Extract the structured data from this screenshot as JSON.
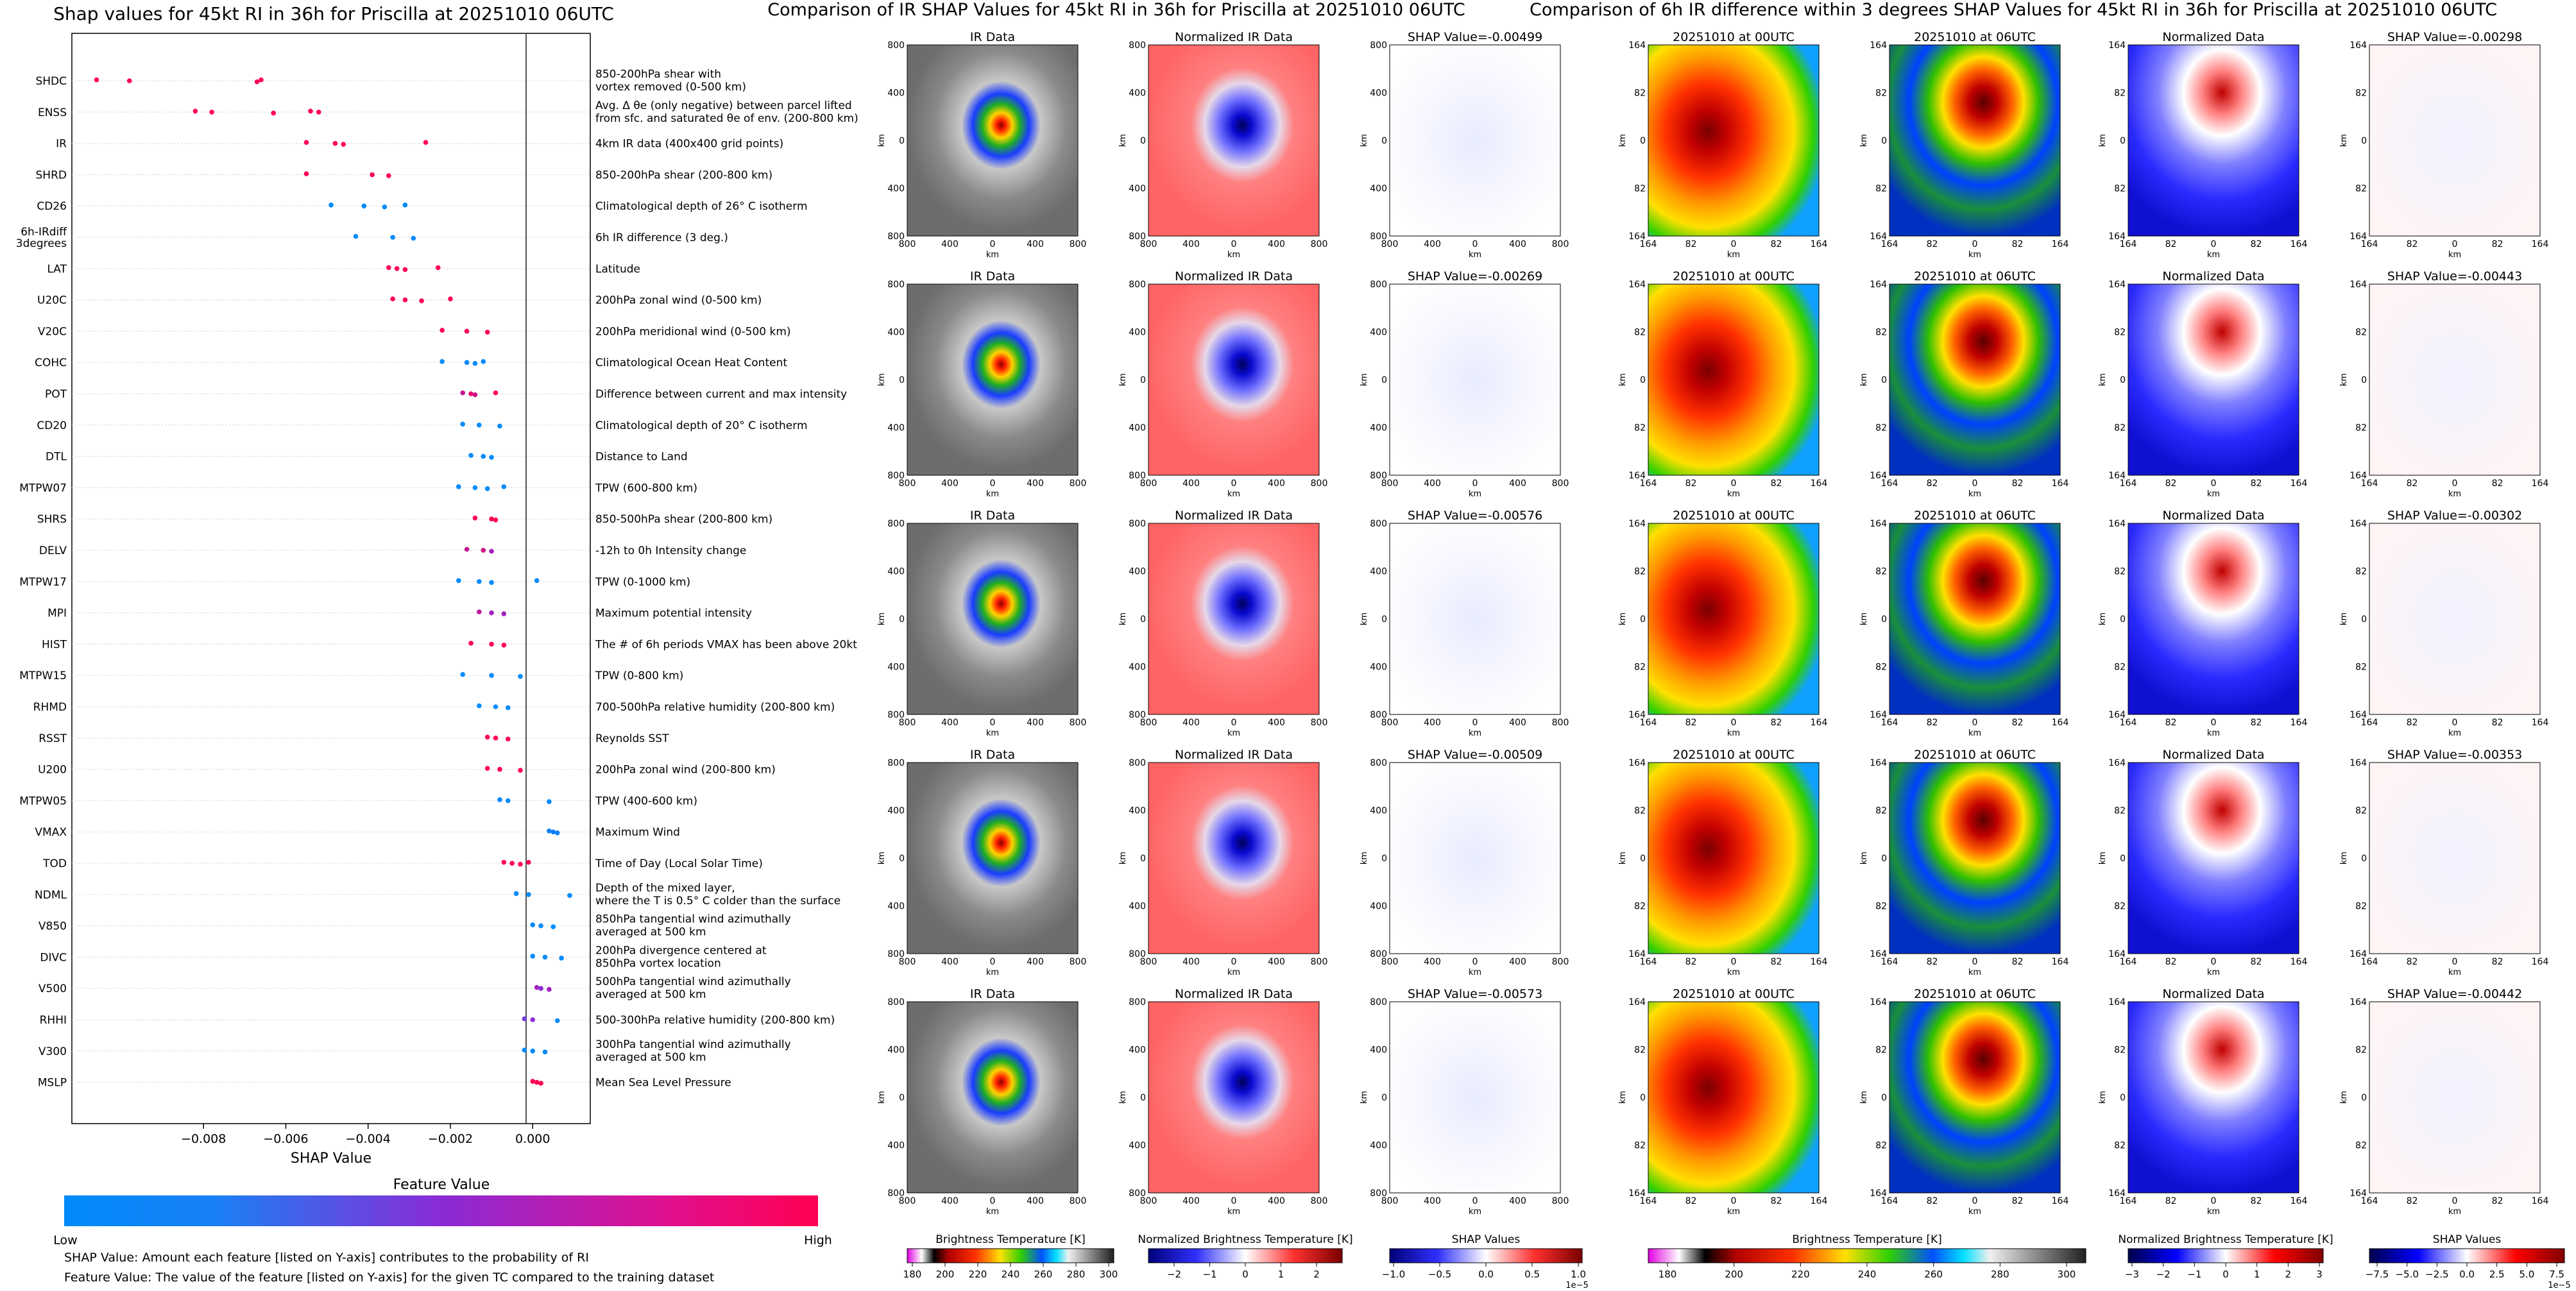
{
  "left_panel": {
    "title": "Shap values for 45kt RI in 36h for Priscilla at 20251010 06UTC",
    "xlabel": "SHAP Value",
    "colorbar": {
      "title": "Feature Value",
      "low": "Low",
      "high": "High",
      "low_color": "#008bfb",
      "high_color": "#ff0052"
    },
    "notes": [
      "SHAP Value: Amount each feature [listed on Y-axis] contributes to the probability of RI",
      "Feature Value: The value of the feature [listed on Y-axis] for the given TC compared to the training dataset"
    ]
  },
  "ir_panel": {
    "title": "Comparison of IR SHAP Values for 45kt RI in 36h for Priscilla at 20251010 06UTC",
    "col_titles": [
      "IR Data",
      "Normalized IR Data"
    ],
    "shap_titles": [
      "SHAP Value=-0.00499",
      "SHAP Value=-0.00269",
      "SHAP Value=-0.00576",
      "SHAP Value=-0.00509",
      "SHAP Value=-0.00573"
    ],
    "ytick_labels": [
      "800",
      "400",
      "0",
      "400",
      "800"
    ],
    "xtick_labels": [
      "800",
      "400",
      "0",
      "400",
      "800"
    ],
    "axis_label": "km",
    "colorbars": [
      {
        "label": "Brightness Temperature [K]",
        "ticks": [
          "180",
          "200",
          "220",
          "240",
          "260",
          "280",
          "300"
        ]
      },
      {
        "label": "Normalized Brightness Temperature [K]",
        "ticks": [
          "−2",
          "−1",
          "0",
          "1",
          "2"
        ]
      },
      {
        "label": "SHAP Values",
        "ticks": [
          "−1.0",
          "−0.5",
          "0.0",
          "0.5",
          "1.0"
        ],
        "exponent": "1e−5"
      }
    ]
  },
  "diff_panel": {
    "title": "Comparison of 6h IR difference within 3 degrees SHAP Values for 45kt RI in 36h for Priscilla at 20251010 06UTC",
    "col_titles": [
      "20251010 at 00UTC",
      "20251010 at 06UTC",
      "Normalized Data"
    ],
    "shap_titles": [
      "SHAP Value=-0.00298",
      "SHAP Value=-0.00443",
      "SHAP Value=-0.00302",
      "SHAP Value=-0.00353",
      "SHAP Value=-0.00442"
    ],
    "ytick_labels": [
      "164",
      "82",
      "0",
      "82",
      "164"
    ],
    "xtick_labels": [
      "164",
      "82",
      "0",
      "82",
      "164"
    ],
    "axis_label": "km",
    "colorbars": [
      {
        "label": "Brightness Temperature [K]",
        "ticks": [
          "180",
          "200",
          "220",
          "240",
          "260",
          "280",
          "300"
        ]
      },
      {
        "label": "Normalized Brightness Temperature [K]",
        "ticks": [
          "−3",
          "−2",
          "−1",
          "0",
          "1",
          "2",
          "3"
        ]
      },
      {
        "label": "SHAP Values",
        "ticks": [
          "−7.5",
          "−5.0",
          "−2.5",
          "0.0",
          "2.5",
          "5.0",
          "7.5"
        ],
        "exponent": "1e−5"
      }
    ]
  },
  "chart_data": [
    {
      "type": "scatter",
      "title": "Shap values for 45kt RI in 36h for Priscilla at 20251010 06UTC",
      "xlabel": "SHAP Value",
      "xlim": [
        -0.0112,
        0.0014
      ],
      "xticks": [
        -0.008,
        -0.006,
        -0.004,
        -0.002,
        0.0
      ],
      "xtick_labels": [
        "−0.008",
        "−0.006",
        "−0.004",
        "−0.002",
        "0.000"
      ],
      "features": [
        {
          "code": "SHDC",
          "desc": [
            "850-200hPa shear with",
            "vortex removed (0-500 km)"
          ],
          "points": [
            [
              -0.0106,
              1
            ],
            [
              -0.0098,
              1
            ],
            [
              -0.0067,
              1
            ],
            [
              -0.0066,
              1
            ]
          ]
        },
        {
          "code": "ENSS",
          "desc": [
            "Avg. Δ θe (only negative) between parcel lifted",
            "from sfc. and saturated θe of env. (200-800 km)"
          ],
          "points": [
            [
              -0.0082,
              1
            ],
            [
              -0.0078,
              1
            ],
            [
              -0.0063,
              1
            ],
            [
              -0.0054,
              1
            ],
            [
              -0.0052,
              1
            ]
          ]
        },
        {
          "code": "IR",
          "desc": [
            "4km IR data (400x400 grid points)"
          ],
          "points": [
            [
              -0.0055,
              1
            ],
            [
              -0.0048,
              1
            ],
            [
              -0.0046,
              1
            ],
            [
              -0.0026,
              1
            ]
          ]
        },
        {
          "code": "SHRD",
          "desc": [
            "850-200hPa shear (200-800 km)"
          ],
          "points": [
            [
              -0.0055,
              1
            ],
            [
              -0.0039,
              1
            ],
            [
              -0.0035,
              1
            ]
          ]
        },
        {
          "code": "CD26",
          "desc": [
            "Climatological depth of 26° C isotherm"
          ],
          "points": [
            [
              -0.0049,
              0
            ],
            [
              -0.0041,
              0
            ],
            [
              -0.0036,
              0
            ],
            [
              -0.0031,
              0
            ]
          ]
        },
        {
          "code": "6h-IRdiff 3degrees",
          "desc": [
            "6h IR difference (3 deg.)"
          ],
          "points": [
            [
              -0.0043,
              0
            ],
            [
              -0.0034,
              0
            ],
            [
              -0.0029,
              0
            ]
          ]
        },
        {
          "code": "LAT",
          "desc": [
            "Latitude"
          ],
          "points": [
            [
              -0.0035,
              1
            ],
            [
              -0.0033,
              1
            ],
            [
              -0.0031,
              1
            ],
            [
              -0.0023,
              1
            ]
          ]
        },
        {
          "code": "U20C",
          "desc": [
            "200hPa zonal wind (0-500 km)"
          ],
          "points": [
            [
              -0.0034,
              1
            ],
            [
              -0.0031,
              1
            ],
            [
              -0.0027,
              1
            ],
            [
              -0.002,
              1
            ]
          ]
        },
        {
          "code": "V20C",
          "desc": [
            "200hPa meridional wind (0-500 km)"
          ],
          "points": [
            [
              -0.0022,
              1
            ],
            [
              -0.0016,
              1
            ],
            [
              -0.0011,
              1
            ]
          ]
        },
        {
          "code": "COHC",
          "desc": [
            "Climatological Ocean Heat Content"
          ],
          "points": [
            [
              -0.0022,
              0
            ],
            [
              -0.0016,
              0
            ],
            [
              -0.0014,
              0
            ],
            [
              -0.0012,
              0
            ]
          ]
        },
        {
          "code": "POT",
          "desc": [
            "Difference between current and max intensity"
          ],
          "points": [
            [
              -0.0017,
              0.75
            ],
            [
              -0.0015,
              0.9
            ],
            [
              -0.0014,
              0.8
            ],
            [
              -0.0009,
              1
            ]
          ]
        },
        {
          "code": "CD20",
          "desc": [
            "Climatological depth of 20° C isotherm"
          ],
          "points": [
            [
              -0.0017,
              0
            ],
            [
              -0.0013,
              0
            ],
            [
              -0.0008,
              0
            ]
          ]
        },
        {
          "code": "DTL",
          "desc": [
            "Distance to Land"
          ],
          "points": [
            [
              -0.0015,
              0
            ],
            [
              -0.0012,
              0
            ],
            [
              -0.001,
              0
            ]
          ]
        },
        {
          "code": "MTPW07",
          "desc": [
            "TPW (600-800 km)"
          ],
          "points": [
            [
              -0.0018,
              0
            ],
            [
              -0.0014,
              0
            ],
            [
              -0.0011,
              0
            ],
            [
              -0.0007,
              0
            ]
          ]
        },
        {
          "code": "SHRS",
          "desc": [
            "850-500hPa shear (200-800 km)"
          ],
          "points": [
            [
              -0.0014,
              1
            ],
            [
              -0.001,
              1
            ],
            [
              -0.0009,
              1
            ]
          ]
        },
        {
          "code": "DELV",
          "desc": [
            "-12h to 0h Intensity change"
          ],
          "points": [
            [
              -0.0016,
              0.75
            ],
            [
              -0.0012,
              0.8
            ],
            [
              -0.001,
              0.6
            ]
          ]
        },
        {
          "code": "MTPW17",
          "desc": [
            "TPW (0-1000 km)"
          ],
          "points": [
            [
              -0.0018,
              0
            ],
            [
              -0.0013,
              0
            ],
            [
              -0.001,
              0
            ],
            [
              0.0001,
              0
            ]
          ]
        },
        {
          "code": "MPI",
          "desc": [
            "Maximum potential intensity"
          ],
          "points": [
            [
              -0.0013,
              0.7
            ],
            [
              -0.001,
              0.6
            ],
            [
              -0.0007,
              0.6
            ]
          ]
        },
        {
          "code": "HIST",
          "desc": [
            "The # of 6h periods VMAX has been above 20kt"
          ],
          "points": [
            [
              -0.0015,
              1
            ],
            [
              -0.001,
              1
            ],
            [
              -0.0007,
              1
            ]
          ]
        },
        {
          "code": "MTPW15",
          "desc": [
            "TPW (0-800 km)"
          ],
          "points": [
            [
              -0.0017,
              0
            ],
            [
              -0.001,
              0
            ],
            [
              -0.0003,
              0
            ]
          ]
        },
        {
          "code": "RHMD",
          "desc": [
            "700-500hPa relative humidity (200-800 km)"
          ],
          "points": [
            [
              -0.0013,
              0
            ],
            [
              -0.0009,
              0
            ],
            [
              -0.0006,
              0
            ]
          ]
        },
        {
          "code": "RSST",
          "desc": [
            "Reynolds SST"
          ],
          "points": [
            [
              -0.0011,
              1
            ],
            [
              -0.0009,
              1
            ],
            [
              -0.0006,
              1
            ]
          ]
        },
        {
          "code": "U200",
          "desc": [
            "200hPa zonal wind (200-800 km)"
          ],
          "points": [
            [
              -0.0011,
              1
            ],
            [
              -0.0008,
              1
            ],
            [
              -0.0003,
              1
            ]
          ]
        },
        {
          "code": "MTPW05",
          "desc": [
            "TPW (400-600 km)"
          ],
          "points": [
            [
              -0.0008,
              0
            ],
            [
              -0.0006,
              0
            ],
            [
              0.0004,
              0
            ]
          ]
        },
        {
          "code": "VMAX",
          "desc": [
            "Maximum Wind"
          ],
          "points": [
            [
              0.0004,
              0.05
            ],
            [
              0.0005,
              0.05
            ],
            [
              0.0006,
              0.05
            ]
          ]
        },
        {
          "code": "TOD",
          "desc": [
            "Time of Day (Local Solar Time)"
          ],
          "points": [
            [
              -0.0007,
              1
            ],
            [
              -0.0005,
              1
            ],
            [
              -0.0003,
              1
            ],
            [
              -0.0001,
              1
            ]
          ]
        },
        {
          "code": "NDML",
          "desc": [
            "Depth of the mixed layer,",
            "where the T is 0.5° C colder than the surface"
          ],
          "points": [
            [
              -0.0004,
              0
            ],
            [
              -0.0001,
              0
            ],
            [
              0.0009,
              0
            ]
          ]
        },
        {
          "code": "V850",
          "desc": [
            "850hPa tangential wind azimuthally",
            "averaged at 500 km"
          ],
          "points": [
            [
              0.0,
              0
            ],
            [
              0.0002,
              0
            ],
            [
              0.0005,
              0
            ]
          ]
        },
        {
          "code": "DIVC",
          "desc": [
            "200hPa divergence centered at",
            "850hPa vortex location"
          ],
          "points": [
            [
              0.0,
              0
            ],
            [
              0.0003,
              0
            ],
            [
              0.0007,
              0
            ]
          ]
        },
        {
          "code": "V500",
          "desc": [
            "500hPa tangential wind azimuthally",
            "averaged at 500 km"
          ],
          "points": [
            [
              0.0001,
              0.6
            ],
            [
              0.0002,
              0.5
            ],
            [
              0.0004,
              0.6
            ]
          ]
        },
        {
          "code": "RHHI",
          "desc": [
            "500-300hPa relative humidity (200-800 km)"
          ],
          "points": [
            [
              -0.0002,
              0.4
            ],
            [
              0.0,
              0.5
            ],
            [
              0.0006,
              0
            ]
          ]
        },
        {
          "code": "V300",
          "desc": [
            "300hPa tangential wind azimuthally",
            "averaged at 500 km"
          ],
          "points": [
            [
              -0.0002,
              0
            ],
            [
              0.0,
              0
            ],
            [
              0.0003,
              0
            ]
          ]
        },
        {
          "code": "MSLP",
          "desc": [
            "Mean Sea Level Pressure"
          ],
          "points": [
            [
              0.0,
              1
            ],
            [
              0.0001,
              1
            ],
            [
              0.0002,
              1
            ]
          ]
        }
      ]
    },
    {
      "type": "heatmap",
      "title": "Comparison of IR SHAP Values for 45kt RI in 36h for Priscilla at 20251010 06UTC",
      "shap_values": [
        -0.00499,
        -0.00269,
        -0.00576,
        -0.00509,
        -0.00573
      ]
    },
    {
      "type": "heatmap",
      "title": "Comparison of 6h IR difference within 3 degrees SHAP Values for 45kt RI in 36h for Priscilla at 20251010 06UTC",
      "shap_values": [
        -0.00298,
        -0.00443,
        -0.00302,
        -0.00353,
        -0.00442
      ]
    }
  ]
}
